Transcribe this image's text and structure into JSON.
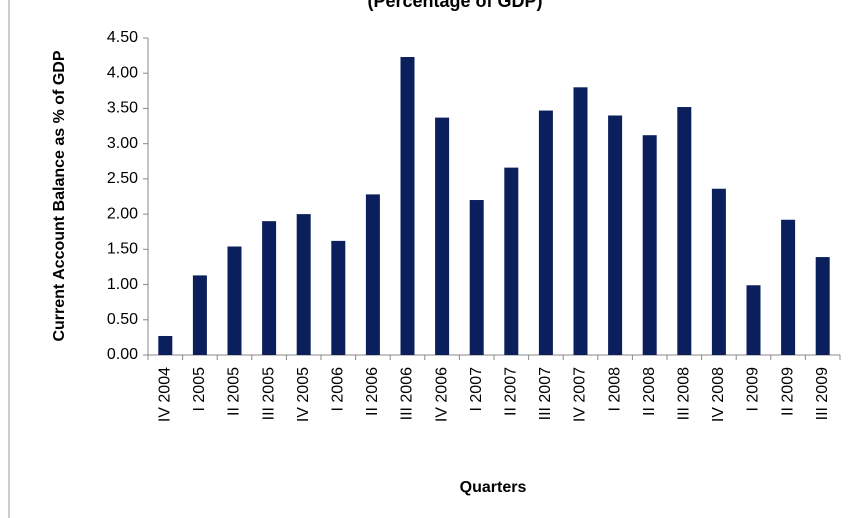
{
  "chart_data": {
    "type": "bar",
    "title": "(Percentage of GDP)",
    "x_label": "Quarters",
    "y_label": "Current Account Balance as % of GDP",
    "categories": [
      "IV 2004",
      "I 2005",
      "II 2005",
      "III 2005",
      "IV 2005",
      "I 2006",
      "II 2006",
      "III 2006",
      "IV 2006",
      "I 2007",
      "II 2007",
      "III 2007",
      "IV 2007",
      "I 2008",
      "II 2008",
      "III 2008",
      "IV 2008",
      "I 2009",
      "II 2009",
      "III 2009"
    ],
    "values": [
      0.27,
      1.13,
      1.54,
      1.9,
      2.0,
      1.62,
      2.28,
      4.23,
      3.37,
      2.2,
      2.66,
      3.47,
      3.8,
      3.4,
      3.12,
      3.52,
      2.36,
      0.99,
      1.92,
      1.39
    ],
    "color": "#0b1f5c",
    "ylim": [
      0,
      4.5
    ],
    "yticks": [
      {
        "value": 0,
        "label": "0.00"
      },
      {
        "value": 0.5,
        "label": "0.50"
      },
      {
        "value": 1,
        "label": "1.00"
      },
      {
        "value": 1.5,
        "label": "1.50"
      },
      {
        "value": 2,
        "label": "2.00"
      },
      {
        "value": 2.5,
        "label": "2.50"
      },
      {
        "value": 3,
        "label": "3.00"
      },
      {
        "value": 3.5,
        "label": "3.50"
      },
      {
        "value": 4,
        "label": "4.00"
      },
      {
        "value": 4.5,
        "label": "4.50"
      }
    ],
    "grid": false
  }
}
